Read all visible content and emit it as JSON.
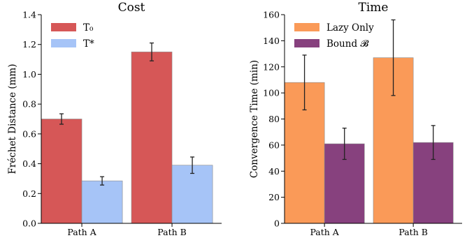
{
  "chart_data": [
    {
      "type": "bar",
      "title": "Cost",
      "xlabel": "",
      "ylabel": "Fréchet Distance (mm)",
      "ylim": [
        0,
        1.4
      ],
      "yticks": [
        "0.0",
        "0.2",
        "0.4",
        "0.6",
        "0.8",
        "1.0",
        "1.2",
        "1.4"
      ],
      "categories": [
        "Path A",
        "Path B"
      ],
      "legend_position": "top-left",
      "series": [
        {
          "name": "T₀",
          "color": "#d65757",
          "values": [
            0.7,
            1.15
          ],
          "errors": [
            0.035,
            0.06
          ]
        },
        {
          "name": "T*",
          "color": "#a6c4f7",
          "values": [
            0.285,
            0.39
          ],
          "errors": [
            0.028,
            0.055
          ]
        }
      ]
    },
    {
      "type": "bar",
      "title": "Time",
      "xlabel": "",
      "ylabel": "Convergence Time (min)",
      "ylim": [
        0,
        160
      ],
      "yticks": [
        "0",
        "20",
        "40",
        "60",
        "80",
        "100",
        "120",
        "140",
        "160"
      ],
      "categories": [
        "Path A",
        "Path B"
      ],
      "legend_position": "top-left",
      "series": [
        {
          "name": "Lazy Only",
          "color": "#fa9a58",
          "values": [
            108,
            127
          ],
          "errors": [
            21,
            29
          ]
        },
        {
          "name": "Bound 𝓑",
          "color": "#87417e",
          "values": [
            61,
            62
          ],
          "errors": [
            12,
            13
          ]
        }
      ]
    }
  ]
}
